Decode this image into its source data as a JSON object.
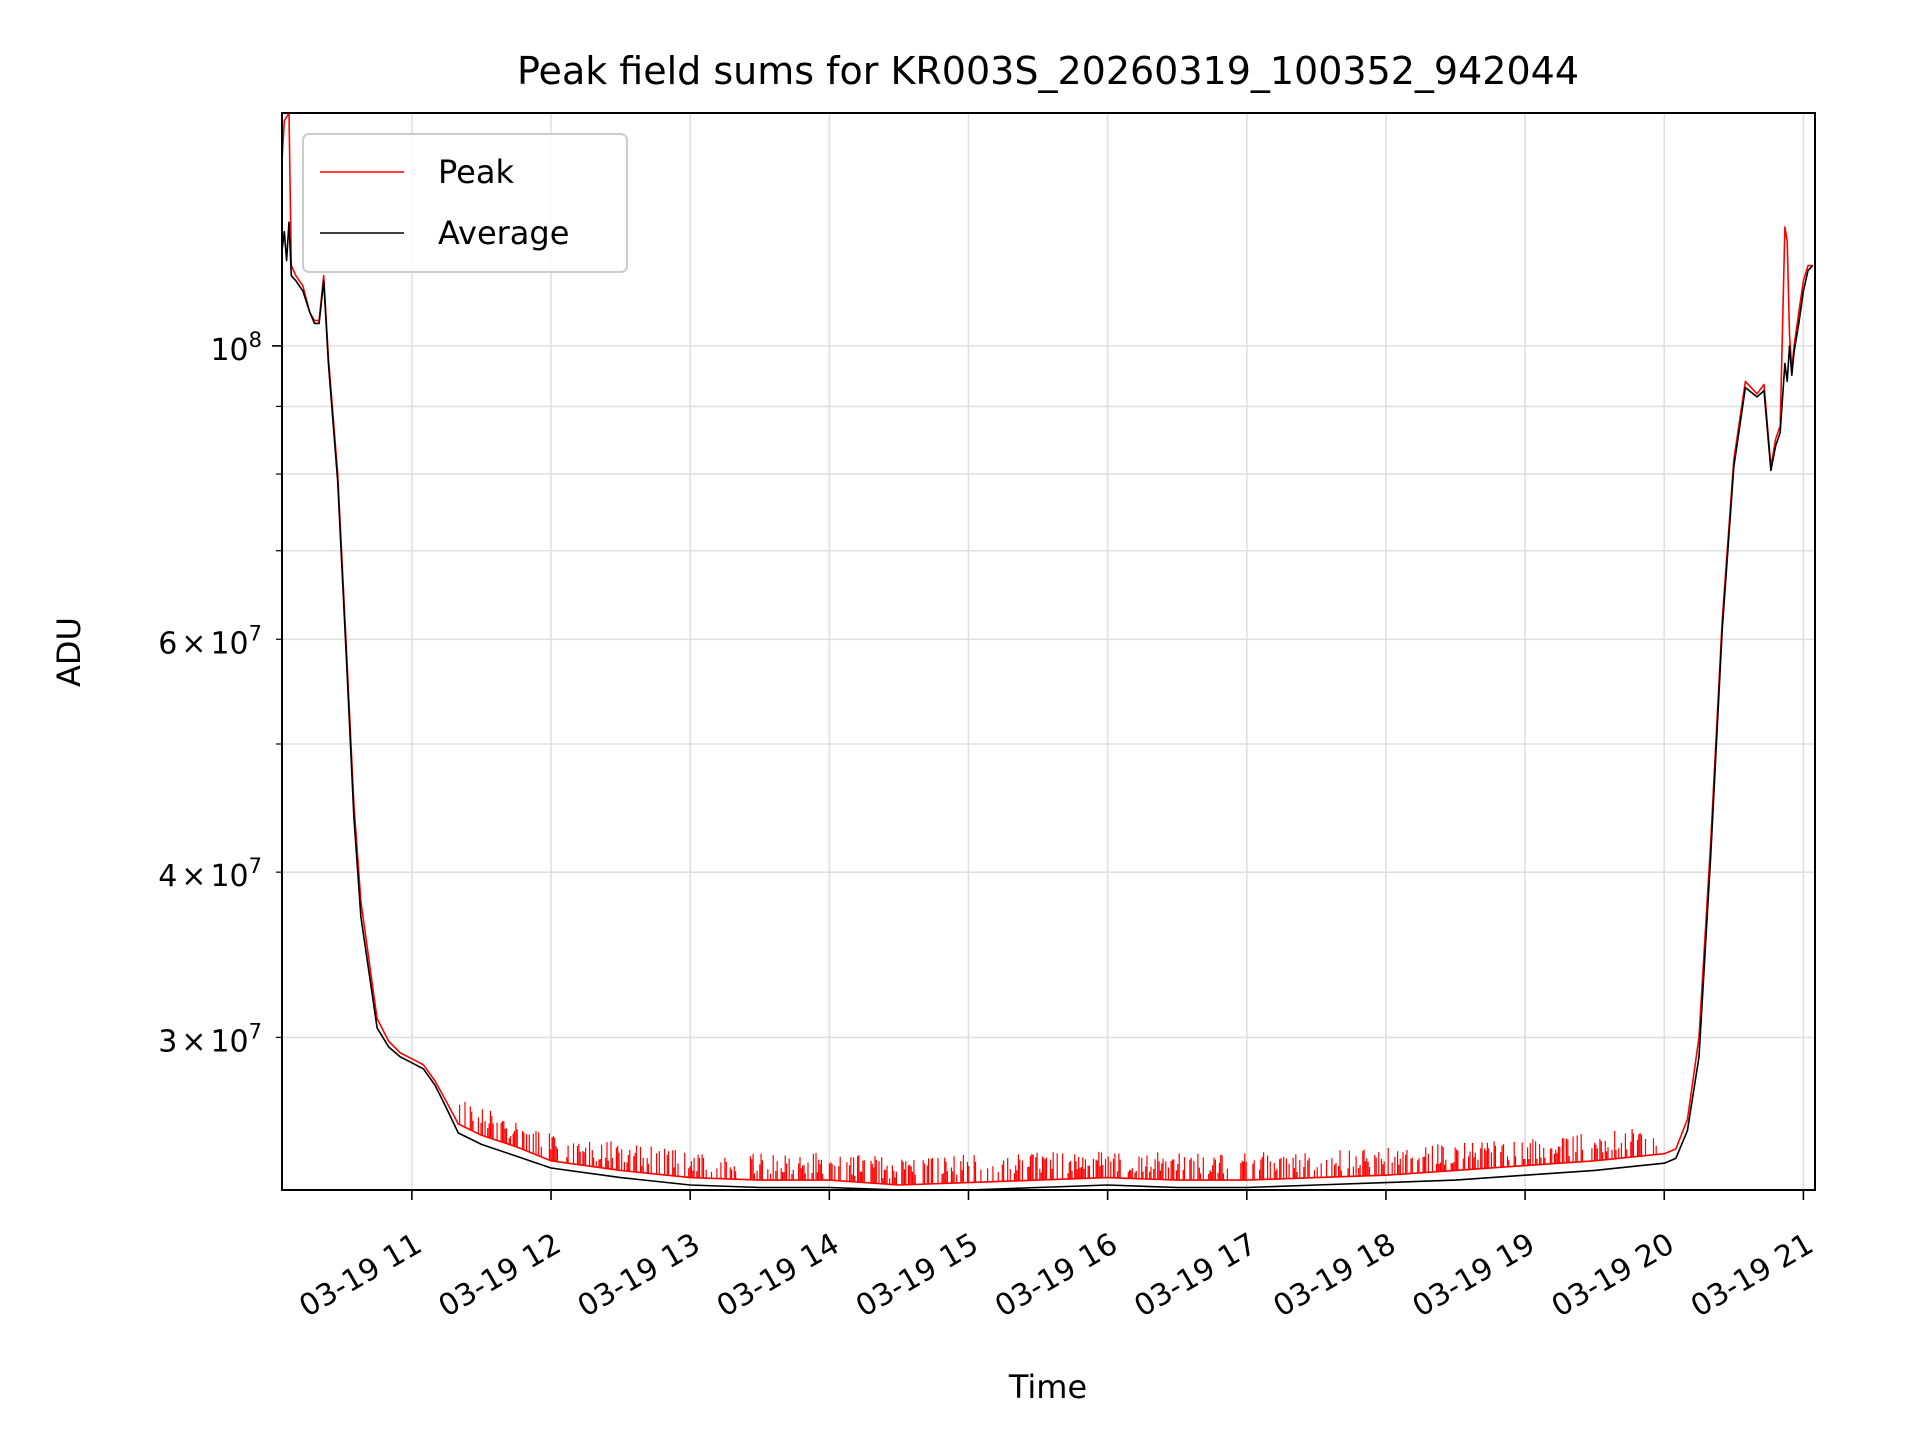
{
  "chart_data": {
    "type": "line",
    "title": "Peak field sums for KR003S_20260319_100352_942044",
    "xlabel": "Time",
    "ylabel": "ADU",
    "yscale": "log",
    "grid": true,
    "legend_position": "top-left",
    "xlim": [
      "2026-03-19 10:04",
      "2026-03-19 21:05"
    ],
    "ylim": [
      23000000,
      150000000
    ],
    "x_ticks": [
      {
        "value": "2026-03-19 11:00",
        "label": "03-19 11"
      },
      {
        "value": "2026-03-19 12:00",
        "label": "03-19 12"
      },
      {
        "value": "2026-03-19 13:00",
        "label": "03-19 13"
      },
      {
        "value": "2026-03-19 14:00",
        "label": "03-19 14"
      },
      {
        "value": "2026-03-19 15:00",
        "label": "03-19 15"
      },
      {
        "value": "2026-03-19 16:00",
        "label": "03-19 16"
      },
      {
        "value": "2026-03-19 17:00",
        "label": "03-19 17"
      },
      {
        "value": "2026-03-19 18:00",
        "label": "03-19 18"
      },
      {
        "value": "2026-03-19 19:00",
        "label": "03-19 19"
      },
      {
        "value": "2026-03-19 20:00",
        "label": "03-19 20"
      },
      {
        "value": "2026-03-19 21:00",
        "label": "03-19 21"
      }
    ],
    "y_major_ticks": [
      {
        "value": 100000000,
        "base": "10",
        "exp": "8"
      }
    ],
    "y_minor_ticks": [
      {
        "value": 30000000,
        "mant": "3",
        "base": "10",
        "exp": "7"
      },
      {
        "value": 40000000,
        "mant": "4",
        "base": "10",
        "exp": "7"
      },
      {
        "value": 60000000,
        "mant": "6",
        "base": "10",
        "exp": "7"
      },
      {
        "value": 50000000
      },
      {
        "value": 70000000
      },
      {
        "value": 80000000
      },
      {
        "value": 90000000
      }
    ],
    "series": [
      {
        "name": "Peak",
        "color": "#ff0000",
        "x": [
          "2026-03-19 10:04",
          "2026-03-19 10:05",
          "2026-03-19 10:07",
          "2026-03-19 10:08",
          "2026-03-19 10:10",
          "2026-03-19 10:13",
          "2026-03-19 10:16",
          "2026-03-19 10:18",
          "2026-03-19 10:20",
          "2026-03-19 10:22",
          "2026-03-19 10:24",
          "2026-03-19 10:28",
          "2026-03-19 10:32",
          "2026-03-19 10:35",
          "2026-03-19 10:38",
          "2026-03-19 10:45",
          "2026-03-19 10:50",
          "2026-03-19 10:55",
          "2026-03-19 11:00",
          "2026-03-19 11:05",
          "2026-03-19 11:10",
          "2026-03-19 11:15",
          "2026-03-19 11:20",
          "2026-03-19 11:30",
          "2026-03-19 11:45",
          "2026-03-19 12:00",
          "2026-03-19 12:30",
          "2026-03-19 13:00",
          "2026-03-19 13:30",
          "2026-03-19 14:00",
          "2026-03-19 14:30",
          "2026-03-19 15:00",
          "2026-03-19 15:30",
          "2026-03-19 16:00",
          "2026-03-19 16:30",
          "2026-03-19 17:00",
          "2026-03-19 17:30",
          "2026-03-19 18:00",
          "2026-03-19 18:30",
          "2026-03-19 19:00",
          "2026-03-19 19:30",
          "2026-03-19 19:50",
          "2026-03-19 20:00",
          "2026-03-19 20:05",
          "2026-03-19 20:10",
          "2026-03-19 20:15",
          "2026-03-19 20:20",
          "2026-03-19 20:25",
          "2026-03-19 20:30",
          "2026-03-19 20:35",
          "2026-03-19 20:40",
          "2026-03-19 20:43",
          "2026-03-19 20:46",
          "2026-03-19 20:48",
          "2026-03-19 20:50",
          "2026-03-19 20:52",
          "2026-03-19 20:53",
          "2026-03-19 20:54",
          "2026-03-19 20:55",
          "2026-03-19 20:56",
          "2026-03-19 20:58",
          "2026-03-19 21:00",
          "2026-03-19 21:02",
          "2026-03-19 21:04"
        ],
        "y": [
          138000000,
          148000000,
          150000000,
          115000000,
          113000000,
          111000000,
          106000000,
          104500000,
          104500000,
          113000000,
          98000000,
          80000000,
          58000000,
          45000000,
          38000000,
          31000000,
          29800000,
          29200000,
          28900000,
          28600000,
          27800000,
          26800000,
          25800000,
          25300000,
          24800000,
          24200000,
          23800000,
          23500000,
          23400000,
          23400000,
          23200000,
          23300000,
          23400000,
          23500000,
          23400000,
          23400000,
          23500000,
          23600000,
          23800000,
          24000000,
          24200000,
          24400000,
          24500000,
          24700000,
          26000000,
          30000000,
          42000000,
          62000000,
          82000000,
          94000000,
          92000000,
          93500000,
          81000000,
          85000000,
          87000000,
          123000000,
          120000000,
          102000000,
          96000000,
          100000000,
          106000000,
          112000000,
          115000000,
          115000000
        ]
      },
      {
        "name": "Average",
        "color": "#000000",
        "x": [
          "2026-03-19 10:04",
          "2026-03-19 10:05",
          "2026-03-19 10:06",
          "2026-03-19 10:07",
          "2026-03-19 10:08",
          "2026-03-19 10:10",
          "2026-03-19 10:13",
          "2026-03-19 10:16",
          "2026-03-19 10:18",
          "2026-03-19 10:20",
          "2026-03-19 10:22",
          "2026-03-19 10:24",
          "2026-03-19 10:28",
          "2026-03-19 10:32",
          "2026-03-19 10:35",
          "2026-03-19 10:38",
          "2026-03-19 10:45",
          "2026-03-19 10:50",
          "2026-03-19 10:55",
          "2026-03-19 11:00",
          "2026-03-19 11:05",
          "2026-03-19 11:10",
          "2026-03-19 11:15",
          "2026-03-19 11:20",
          "2026-03-19 11:30",
          "2026-03-19 11:45",
          "2026-03-19 12:00",
          "2026-03-19 12:30",
          "2026-03-19 13:00",
          "2026-03-19 13:30",
          "2026-03-19 14:00",
          "2026-03-19 14:30",
          "2026-03-19 15:00",
          "2026-03-19 15:30",
          "2026-03-19 16:00",
          "2026-03-19 16:30",
          "2026-03-19 17:00",
          "2026-03-19 17:30",
          "2026-03-19 18:00",
          "2026-03-19 18:30",
          "2026-03-19 19:00",
          "2026-03-19 19:30",
          "2026-03-19 19:50",
          "2026-03-19 20:00",
          "2026-03-19 20:05",
          "2026-03-19 20:10",
          "2026-03-19 20:15",
          "2026-03-19 20:20",
          "2026-03-19 20:25",
          "2026-03-19 20:30",
          "2026-03-19 20:35",
          "2026-03-19 20:40",
          "2026-03-19 20:43",
          "2026-03-19 20:46",
          "2026-03-19 20:48",
          "2026-03-19 20:50",
          "2026-03-19 20:52",
          "2026-03-19 20:53",
          "2026-03-19 20:54",
          "2026-03-19 20:55",
          "2026-03-19 20:56",
          "2026-03-19 20:58",
          "2026-03-19 21:00",
          "2026-03-19 21:02",
          "2026-03-19 21:04"
        ],
        "y": [
          118000000,
          122000000,
          116000000,
          124000000,
          113000000,
          112000000,
          110000000,
          106000000,
          104000000,
          104000000,
          112000000,
          97000000,
          79000000,
          57000000,
          44000000,
          37000000,
          30500000,
          29500000,
          29000000,
          28700000,
          28400000,
          27600000,
          26500000,
          25400000,
          24900000,
          24400000,
          23900000,
          23500000,
          23200000,
          23100000,
          23100000,
          23000000,
          23000000,
          23100000,
          23200000,
          23100000,
          23100000,
          23200000,
          23300000,
          23400000,
          23600000,
          23800000,
          24000000,
          24100000,
          24300000,
          25500000,
          29000000,
          41000000,
          61000000,
          81000000,
          93000000,
          91500000,
          92500000,
          80500000,
          84000000,
          86000000,
          97000000,
          94000000,
          100000000,
          95000000,
          99000000,
          104000000,
          110000000,
          114000000,
          115000000
        ]
      }
    ],
    "spikes": {
      "series": "Peak",
      "from": "2026-03-19 11:20",
      "to": "2026-03-19 20:00",
      "note_hidden": true
    }
  }
}
